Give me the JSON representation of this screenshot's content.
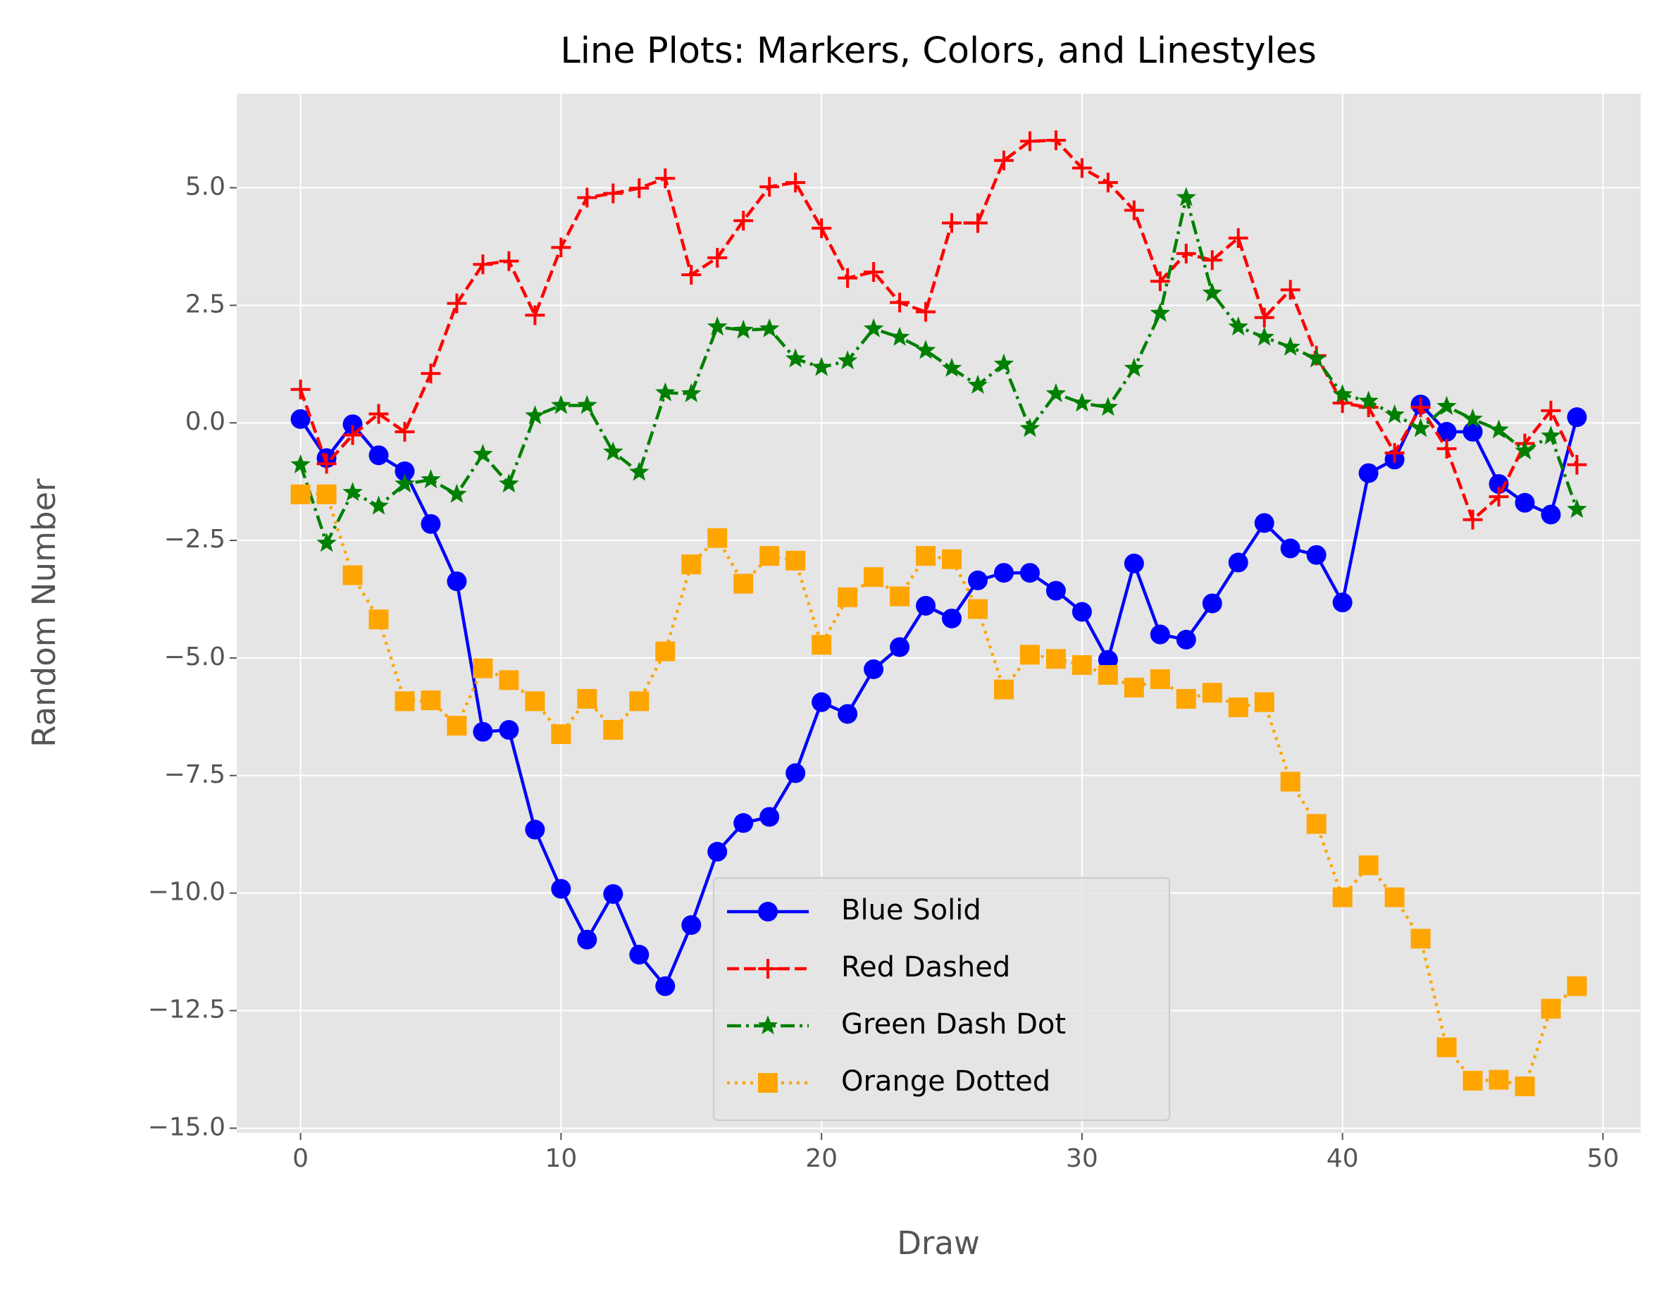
{
  "chart_data": {
    "type": "line",
    "title": "Line Plots: Markers, Colors, and Linestyles",
    "x_label": "Draw",
    "y_label": "Random Number",
    "x": [
      0,
      1,
      2,
      3,
      4,
      5,
      6,
      7,
      8,
      9,
      10,
      11,
      12,
      13,
      14,
      15,
      16,
      17,
      18,
      19,
      20,
      21,
      22,
      23,
      24,
      25,
      26,
      27,
      28,
      29,
      30,
      31,
      32,
      33,
      34,
      35,
      36,
      37,
      38,
      39,
      40,
      41,
      42,
      43,
      44,
      45,
      46,
      47,
      48,
      49
    ],
    "series": [
      {
        "name": "Blue Solid",
        "color": "#0000ff",
        "marker": "o",
        "linestyle": "solid",
        "values": [
          0.08,
          -0.75,
          -0.03,
          -0.69,
          -1.03,
          -2.15,
          -3.37,
          -6.57,
          -6.53,
          -8.65,
          -9.91,
          -10.99,
          -10.02,
          -11.31,
          -11.98,
          -10.68,
          -9.12,
          -8.51,
          -8.38,
          -7.45,
          -5.94,
          -6.19,
          -5.24,
          -4.77,
          -3.89,
          -4.16,
          -3.35,
          -3.19,
          -3.19,
          -3.57,
          -4.02,
          -5.04,
          -2.99,
          -4.5,
          -4.61,
          -3.84,
          -2.97,
          -2.13,
          -2.67,
          -2.81,
          -3.82,
          -1.07,
          -0.78,
          0.39,
          -0.19,
          -0.19,
          -1.3,
          -1.7,
          -1.95,
          0.12
        ]
      },
      {
        "name": "Red Dashed",
        "color": "#ff0000",
        "marker": "+",
        "linestyle": "dashed",
        "values": [
          0.71,
          -0.87,
          -0.26,
          0.19,
          -0.19,
          1.05,
          2.54,
          3.37,
          3.44,
          2.29,
          3.73,
          4.79,
          4.88,
          4.99,
          5.2,
          3.15,
          3.51,
          4.3,
          5.02,
          5.11,
          4.14,
          3.08,
          3.21,
          2.56,
          2.36,
          4.25,
          4.25,
          5.58,
          5.99,
          6.01,
          5.42,
          5.11,
          4.52,
          3.01,
          3.6,
          3.46,
          3.93,
          2.24,
          2.83,
          1.43,
          0.42,
          0.33,
          -0.64,
          0.33,
          -0.55,
          -2.06,
          -1.57,
          -0.44,
          0.26,
          -0.89
        ]
      },
      {
        "name": "Green Dash Dot",
        "color": "#008000",
        "marker": "*",
        "linestyle": "dashdot",
        "values": [
          -0.89,
          -2.56,
          -1.48,
          -1.77,
          -1.3,
          -1.21,
          -1.52,
          -0.67,
          -1.3,
          0.15,
          0.37,
          0.37,
          -0.62,
          -1.05,
          0.64,
          0.62,
          2.04,
          1.97,
          2.0,
          1.36,
          1.18,
          1.32,
          2.0,
          1.82,
          1.54,
          1.16,
          0.8,
          1.25,
          -0.12,
          0.62,
          0.42,
          0.33,
          1.16,
          2.33,
          4.79,
          2.76,
          2.04,
          1.82,
          1.61,
          1.36,
          0.6,
          0.46,
          0.17,
          -0.12,
          0.35,
          0.08,
          -0.15,
          -0.6,
          -0.28,
          -1.84
        ]
      },
      {
        "name": "Orange Dotted",
        "color": "#ffa500",
        "marker": "s",
        "linestyle": "dotted",
        "values": [
          -1.52,
          -1.52,
          -3.24,
          -4.18,
          -5.92,
          -5.9,
          -6.44,
          -5.22,
          -5.47,
          -5.92,
          -6.62,
          -5.87,
          -6.53,
          -5.92,
          -4.86,
          -3.01,
          -2.45,
          -3.42,
          -2.83,
          -2.93,
          -4.72,
          -3.71,
          -3.28,
          -3.69,
          -2.83,
          -2.9,
          -3.96,
          -5.67,
          -4.93,
          -5.02,
          -5.15,
          -5.36,
          -5.63,
          -5.45,
          -5.87,
          -5.74,
          -6.05,
          -5.94,
          -7.63,
          -8.53,
          -10.09,
          -9.41,
          -10.09,
          -10.97,
          -13.28,
          -13.99,
          -13.97,
          -14.11,
          -12.46,
          -11.98
        ]
      }
    ],
    "xlim": [
      -2.45,
      51.45
    ],
    "ylim": [
      -15.1,
      7.0
    ],
    "xticks": [
      0,
      10,
      20,
      30,
      40,
      50
    ],
    "yticks": [
      {
        "value": -15,
        "label": "−15.0"
      },
      {
        "value": -12.5,
        "label": "−12.5"
      },
      {
        "value": -10,
        "label": "−10.0"
      },
      {
        "value": -7.5,
        "label": "−7.5"
      },
      {
        "value": -5,
        "label": "−5.0"
      },
      {
        "value": -2.5,
        "label": "−2.5"
      },
      {
        "value": 0,
        "label": "0.0"
      },
      {
        "value": 2.5,
        "label": "2.5"
      },
      {
        "value": 5,
        "label": "5.0"
      }
    ],
    "grid": true,
    "legend": "lower center"
  }
}
